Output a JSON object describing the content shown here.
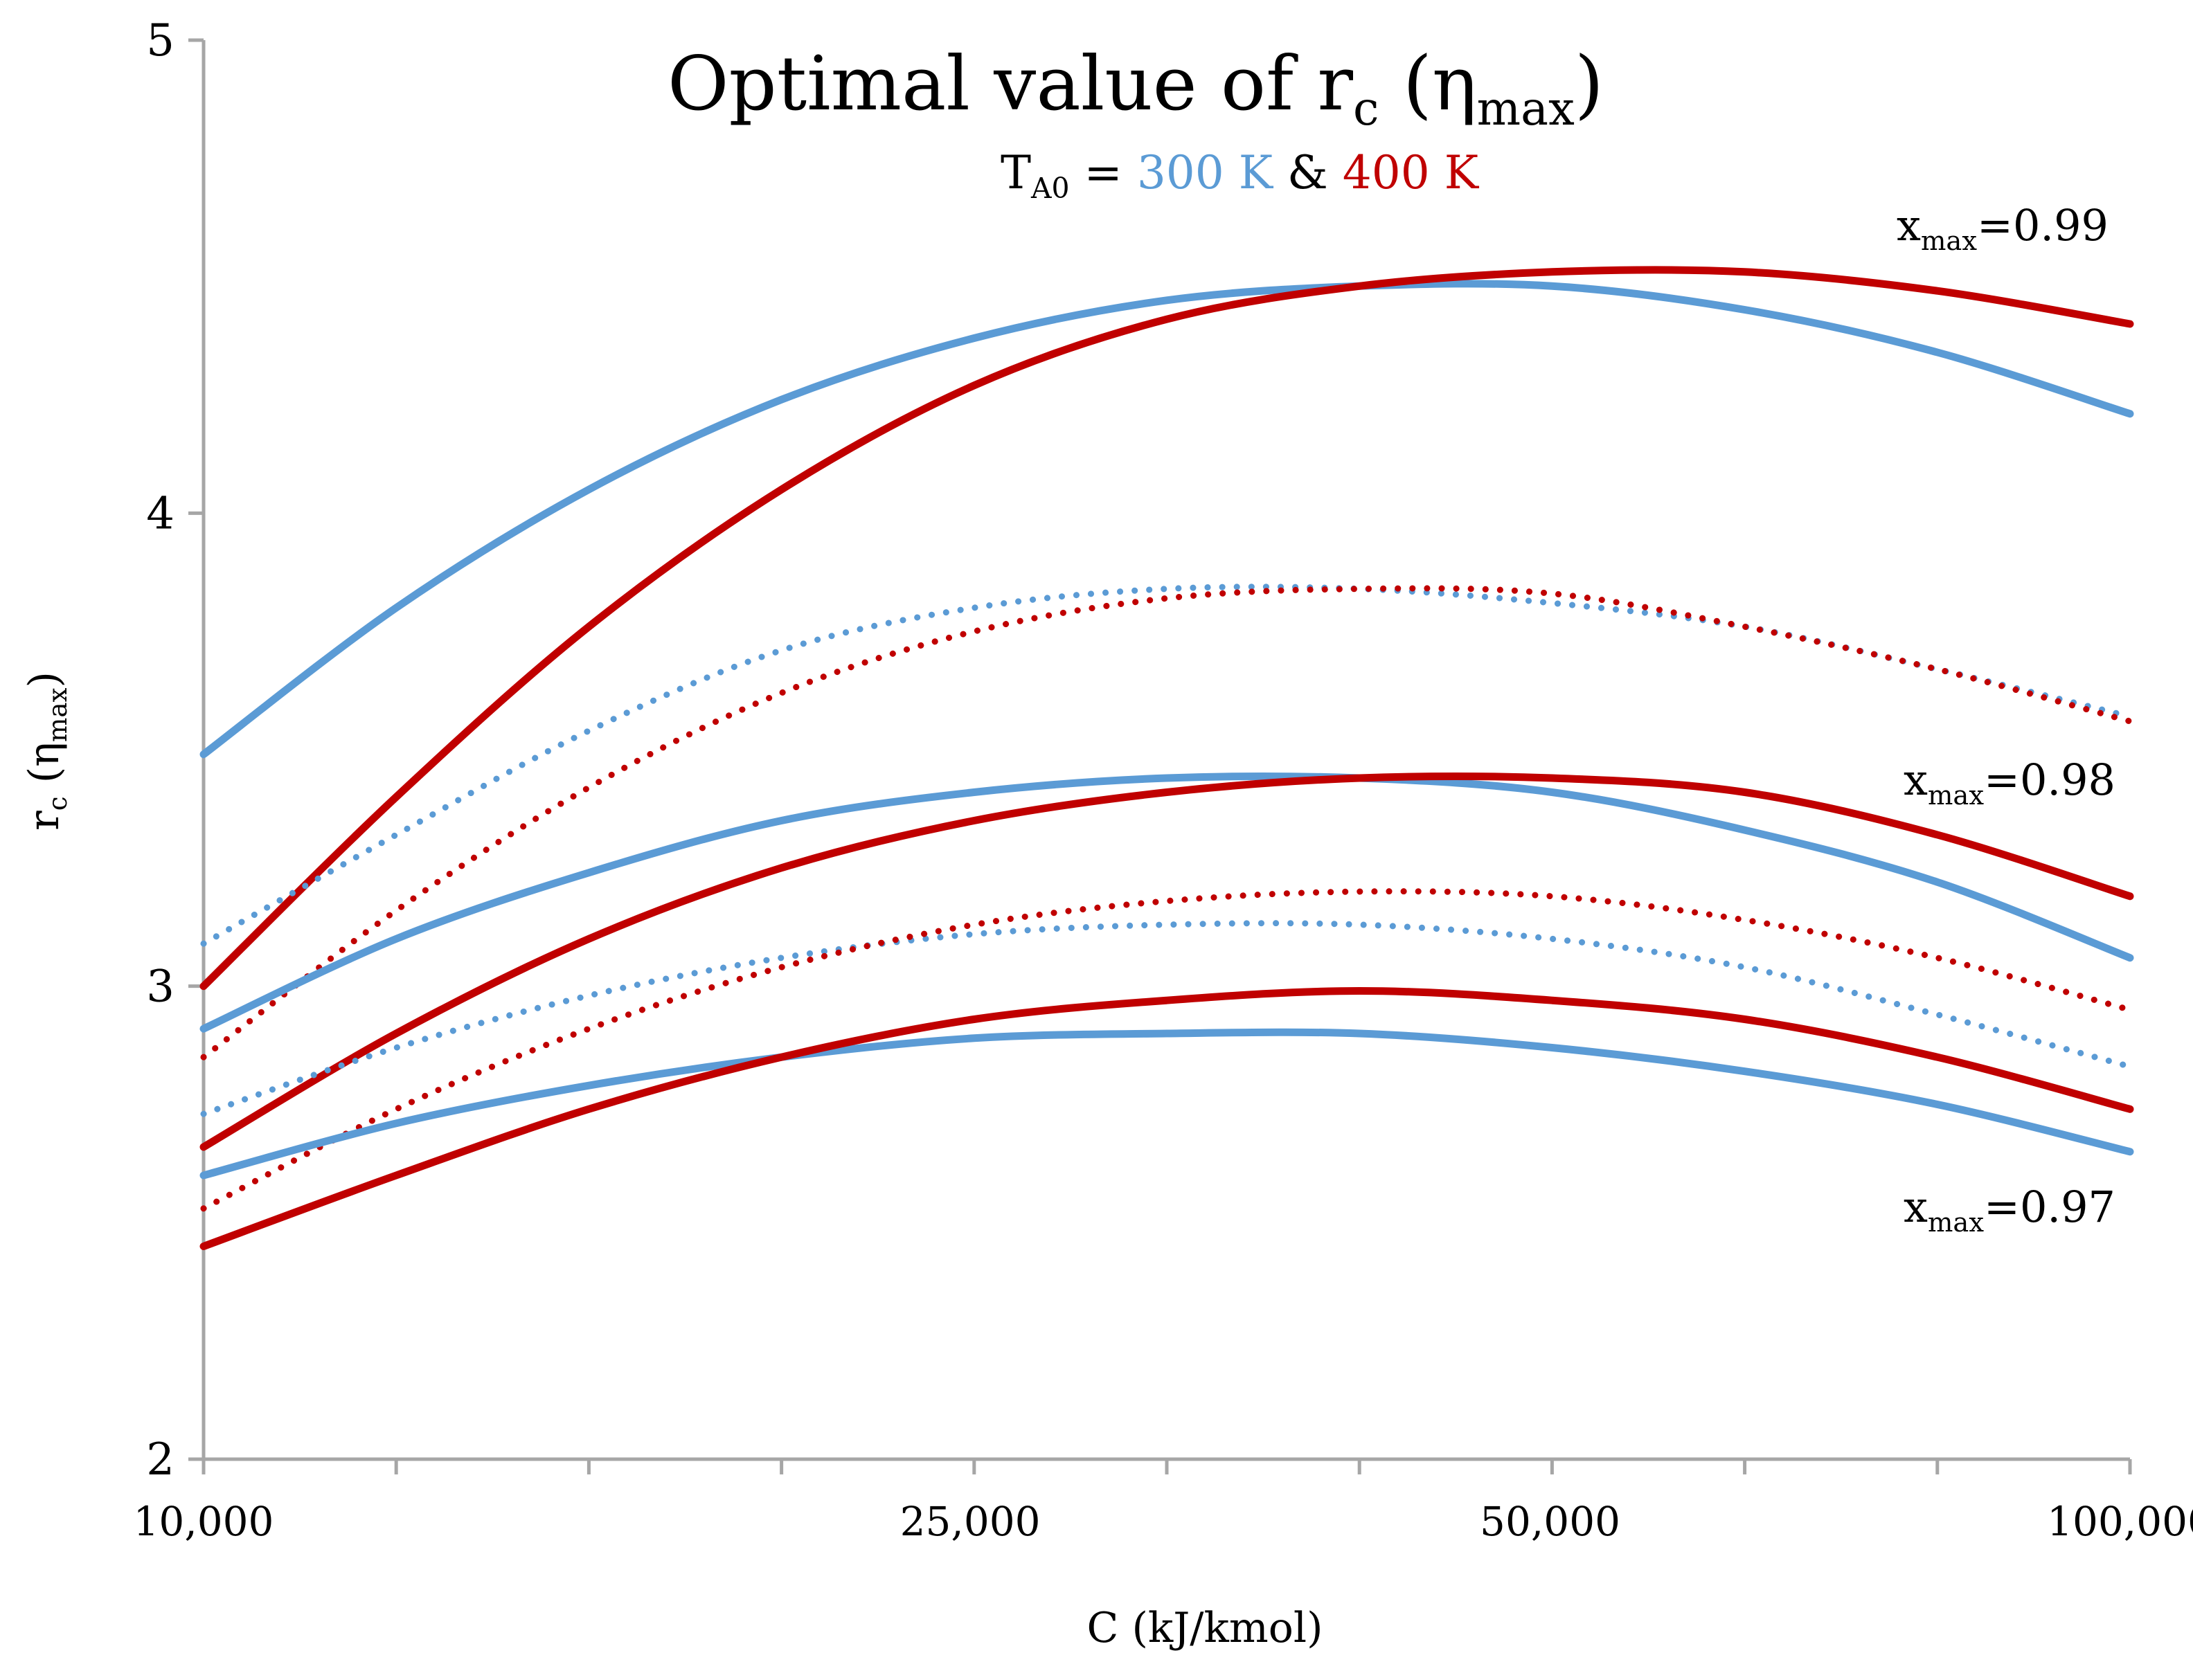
{
  "chart_data": {
    "type": "line",
    "title": "Optimal value of r",
    "title_sub": "c",
    "title_end": " (η",
    "title_end_sub": "max",
    "title_close": ")",
    "subtitle": {
      "prefix": "T",
      "prefix_sub": "A0",
      "eq": " = ",
      "temp_a": "300 K",
      "amp": " & ",
      "temp_b": "400 K"
    },
    "xlabel": "C (kJ/kmol)",
    "ylabel": "r",
    "ylabel_sub": "c",
    "ylabel_mid": " (η",
    "ylabel_mid_sub": "max",
    "ylabel_close": ")",
    "x_scale": "log",
    "x_ticks": [
      10000,
      25000,
      50000,
      100000
    ],
    "x_tick_labels": [
      "10,000",
      "25,000",
      "50,000",
      "100,000"
    ],
    "x_minor_ticks": [
      10000,
      12589,
      15849,
      19953,
      25119,
      31623,
      39811,
      50119,
      63096,
      79433,
      100000
    ],
    "ylim": [
      2,
      5
    ],
    "y_ticks": [
      2,
      3,
      4,
      5
    ],
    "y_tick_labels": [
      "2",
      "3",
      "4",
      "5"
    ],
    "grid": false,
    "colors": {
      "T300": "#5b9bd5",
      "T400": "#c00000"
    },
    "annotations": [
      {
        "text": "x",
        "sub": "max",
        "rest": "=0.99"
      },
      {
        "text": "x",
        "sub": "max",
        "rest": "=0.98"
      },
      {
        "text": "x",
        "sub": "max",
        "rest": "=0.97"
      }
    ],
    "x": [
      10000,
      12589,
      15849,
      19953,
      25119,
      31623,
      39811,
      50119,
      63096,
      79433,
      100000
    ],
    "series": [
      {
        "x_max": 0.99,
        "temperature_K": 300,
        "style": "solid",
        "color": "#5b9bd5",
        "values": [
          3.49,
          3.8,
          4.05,
          4.24,
          4.37,
          4.45,
          4.48,
          4.48,
          4.43,
          4.34,
          4.21
        ]
      },
      {
        "x_max": 0.99,
        "temperature_K": 400,
        "style": "solid",
        "color": "#c00000",
        "values": [
          3.0,
          3.4,
          3.76,
          4.05,
          4.27,
          4.41,
          4.48,
          4.51,
          4.51,
          4.47,
          4.4
        ]
      },
      {
        "x_max": 0.985,
        "temperature_K": 300,
        "style": "dotted",
        "color": "#5b9bd5",
        "values": [
          3.09,
          3.32,
          3.54,
          3.71,
          3.8,
          3.84,
          3.84,
          3.81,
          3.76,
          3.67,
          3.57
        ]
      },
      {
        "x_max": 0.985,
        "temperature_K": 400,
        "style": "dotted",
        "color": "#c00000",
        "values": [
          2.85,
          3.16,
          3.42,
          3.62,
          3.75,
          3.82,
          3.84,
          3.83,
          3.76,
          3.67,
          3.56
        ]
      },
      {
        "x_max": 0.98,
        "temperature_K": 300,
        "style": "solid",
        "color": "#5b9bd5",
        "values": [
          2.91,
          3.1,
          3.24,
          3.35,
          3.41,
          3.44,
          3.44,
          3.41,
          3.33,
          3.22,
          3.06
        ]
      },
      {
        "x_max": 0.98,
        "temperature_K": 400,
        "style": "solid",
        "color": "#c00000",
        "values": [
          2.66,
          2.9,
          3.1,
          3.25,
          3.35,
          3.41,
          3.44,
          3.44,
          3.41,
          3.32,
          3.19
        ]
      },
      {
        "x_max": 0.975,
        "temperature_K": 300,
        "style": "dotted",
        "color": "#5b9bd5",
        "values": [
          2.73,
          2.87,
          2.98,
          3.06,
          3.11,
          3.13,
          3.13,
          3.1,
          3.04,
          2.94,
          2.83
        ]
      },
      {
        "x_max": 0.975,
        "temperature_K": 400,
        "style": "dotted",
        "color": "#c00000",
        "values": [
          2.53,
          2.74,
          2.91,
          3.04,
          3.13,
          3.18,
          3.2,
          3.19,
          3.14,
          3.06,
          2.95
        ]
      },
      {
        "x_max": 0.97,
        "temperature_K": 300,
        "style": "solid",
        "color": "#5b9bd5",
        "values": [
          2.6,
          2.71,
          2.79,
          2.85,
          2.89,
          2.9,
          2.9,
          2.87,
          2.82,
          2.75,
          2.65
        ]
      },
      {
        "x_max": 0.97,
        "temperature_K": 400,
        "style": "solid",
        "color": "#c00000",
        "values": [
          2.45,
          2.6,
          2.74,
          2.85,
          2.93,
          2.97,
          2.99,
          2.97,
          2.93,
          2.85,
          2.74
        ]
      }
    ]
  }
}
